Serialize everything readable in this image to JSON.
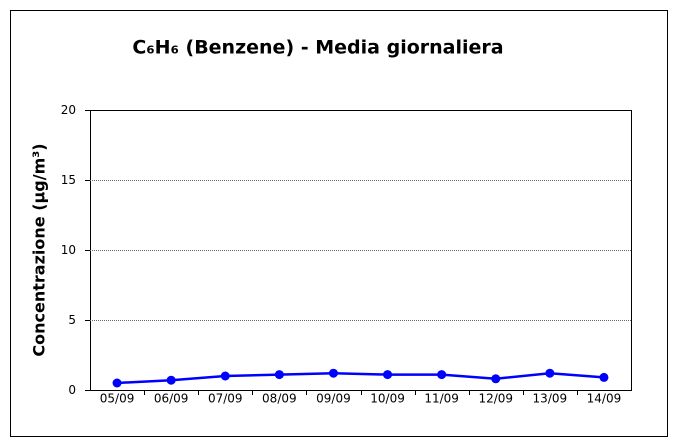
{
  "chart_data": {
    "type": "line",
    "title": "C₆H₆ (Benzene) - Media giornaliera",
    "y_label": "Concentrazione (µg/m³)",
    "categories": [
      "05/09",
      "06/09",
      "07/09",
      "08/09",
      "09/09",
      "10/09",
      "11/09",
      "12/09",
      "13/09",
      "14/09"
    ],
    "series": [
      {
        "name": "C₆H₆",
        "color": "#0000ff",
        "values": [
          0.5,
          0.7,
          1.0,
          1.1,
          1.2,
          1.1,
          1.1,
          0.8,
          1.2,
          0.9
        ]
      }
    ],
    "ylim": [
      0,
      20
    ],
    "yticks": [
      0,
      5,
      10,
      15,
      20
    ],
    "grid": true
  }
}
